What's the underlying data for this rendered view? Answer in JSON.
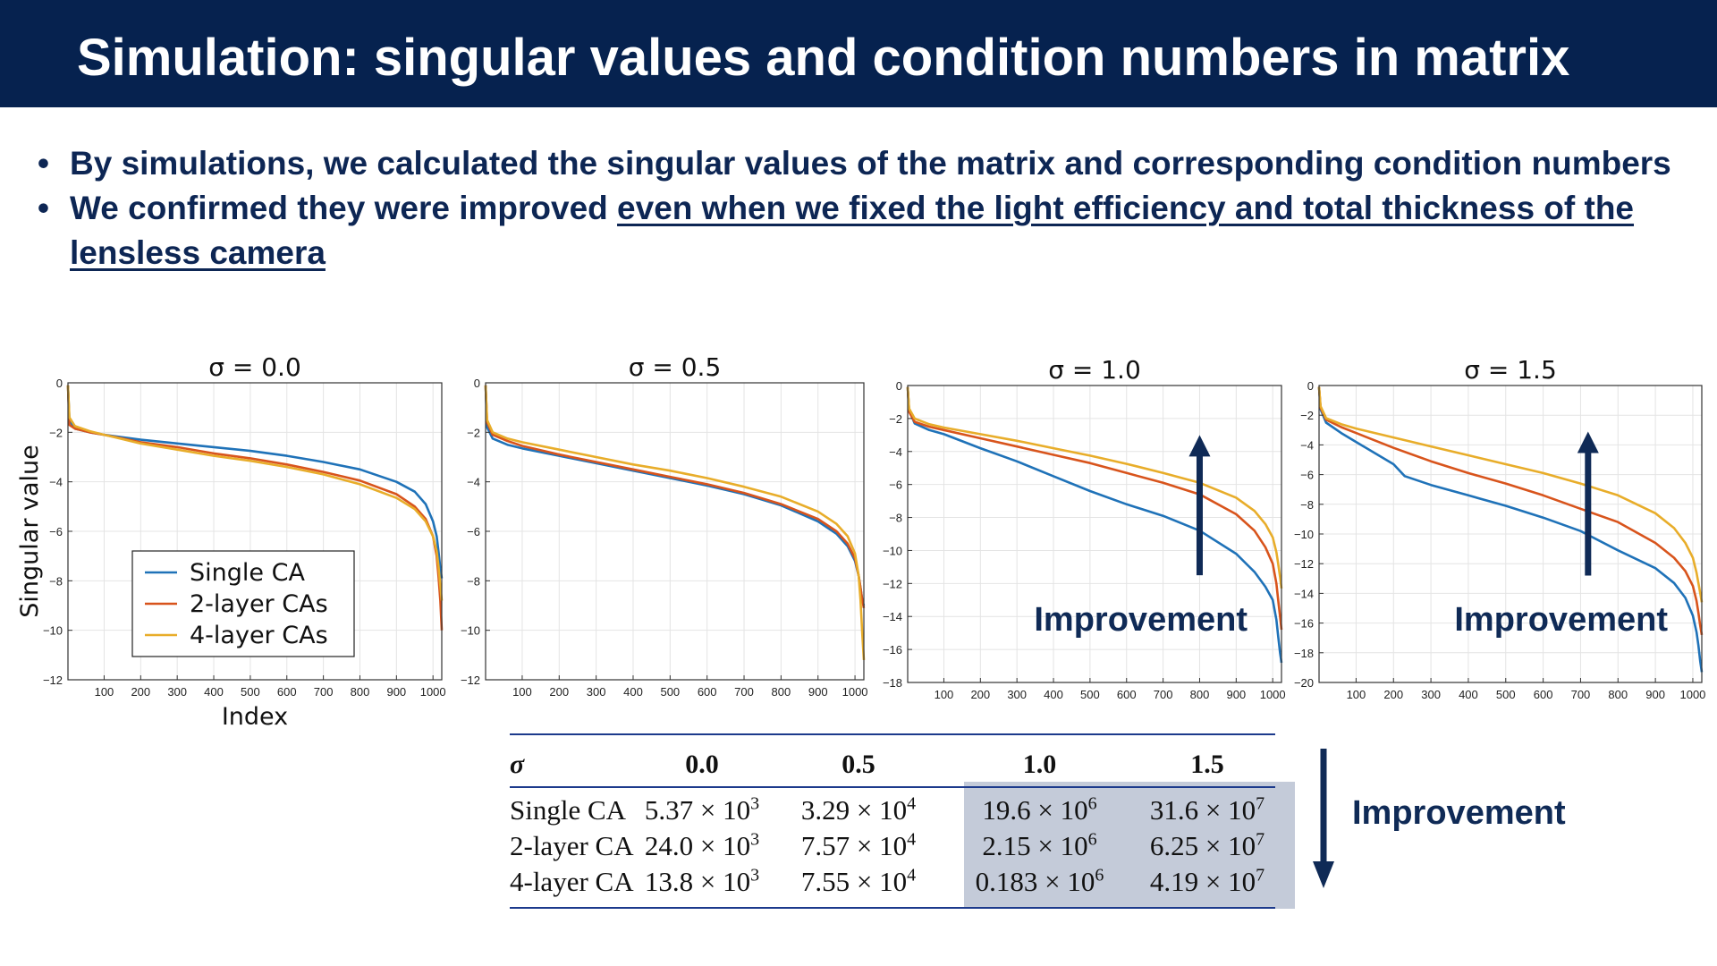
{
  "title": "Simulation: singular values and condition numbers in matrix",
  "bullets": [
    {
      "text": "By simulations, we calculated the singular values of the matrix and corresponding condition numbers",
      "underline": ""
    },
    {
      "text": "We confirmed they were improved ",
      "underline": "even when we fixed the light efficiency and total thickness of the lensless camera"
    }
  ],
  "bullet_symbol": "•",
  "colors": {
    "header_bg": "#06224f",
    "text": "#0d2654",
    "single": "#1f72b8",
    "two_layer": "#d8541c",
    "four_layer": "#e8ad2a",
    "arrow": "#0f2a56",
    "highlight": "#c4cbd9"
  },
  "chart_data": [
    {
      "type": "line",
      "title": "σ = 0.0",
      "xlabel": "Index",
      "ylabel": "Singular value",
      "xlim": [
        1,
        1024
      ],
      "ylim": [
        -12,
        0
      ],
      "xticks": [
        100,
        200,
        300,
        400,
        500,
        600,
        700,
        800,
        900,
        1000
      ],
      "yticks": [
        0,
        -2,
        -4,
        -6,
        -8,
        -10,
        -12
      ],
      "grid": true,
      "legend": {
        "position": "lower-left",
        "entries": [
          "Single CA",
          "2-layer CAs",
          "4-layer CAs"
        ]
      },
      "annotation": "",
      "series": [
        {
          "name": "Single CA",
          "color": "#1f72b8",
          "x": [
            1,
            5,
            20,
            60,
            100,
            200,
            300,
            400,
            500,
            600,
            700,
            800,
            900,
            950,
            980,
            1000,
            1010,
            1015,
            1020,
            1024
          ],
          "y": [
            -0.1,
            -1.5,
            -1.85,
            -2.0,
            -2.1,
            -2.3,
            -2.45,
            -2.6,
            -2.75,
            -2.95,
            -3.2,
            -3.5,
            -4.0,
            -4.4,
            -4.9,
            -5.6,
            -6.2,
            -6.8,
            -7.5,
            -7.9
          ]
        },
        {
          "name": "2-layer CAs",
          "color": "#d8541c",
          "x": [
            1,
            5,
            20,
            60,
            100,
            200,
            300,
            400,
            500,
            600,
            700,
            800,
            900,
            950,
            980,
            1000,
            1010,
            1015,
            1020,
            1024
          ],
          "y": [
            -0.1,
            -1.7,
            -1.85,
            -2.0,
            -2.1,
            -2.4,
            -2.6,
            -2.85,
            -3.05,
            -3.3,
            -3.6,
            -3.95,
            -4.5,
            -5.0,
            -5.5,
            -6.2,
            -7.0,
            -7.8,
            -8.8,
            -10.0
          ]
        },
        {
          "name": "4-layer CAs",
          "color": "#e8ad2a",
          "x": [
            1,
            5,
            20,
            60,
            100,
            200,
            300,
            400,
            500,
            600,
            700,
            800,
            900,
            950,
            980,
            1000,
            1010,
            1015,
            1020,
            1024
          ],
          "y": [
            -0.1,
            -1.4,
            -1.75,
            -1.95,
            -2.1,
            -2.45,
            -2.7,
            -2.95,
            -3.15,
            -3.4,
            -3.7,
            -4.1,
            -4.65,
            -5.1,
            -5.6,
            -6.2,
            -6.8,
            -7.4,
            -8.2,
            -8.8
          ]
        }
      ]
    },
    {
      "type": "line",
      "title": "σ = 0.5",
      "xlabel": "",
      "ylabel": "",
      "xlim": [
        1,
        1024
      ],
      "ylim": [
        -12,
        0
      ],
      "xticks": [
        100,
        200,
        300,
        400,
        500,
        600,
        700,
        800,
        900,
        1000
      ],
      "yticks": [
        0,
        -2,
        -4,
        -6,
        -8,
        -10,
        -12
      ],
      "grid": true,
      "legend": null,
      "annotation": "",
      "series": [
        {
          "name": "Single CA",
          "color": "#1f72b8",
          "x": [
            1,
            5,
            20,
            60,
            100,
            200,
            300,
            400,
            500,
            600,
            700,
            800,
            900,
            950,
            980,
            1000,
            1010,
            1015,
            1020,
            1024
          ],
          "y": [
            -0.1,
            -1.8,
            -2.25,
            -2.5,
            -2.65,
            -2.95,
            -3.25,
            -3.55,
            -3.85,
            -4.15,
            -4.5,
            -4.95,
            -5.6,
            -6.1,
            -6.6,
            -7.2,
            -7.8,
            -8.3,
            -8.8,
            -9.0
          ]
        },
        {
          "name": "2-layer CAs",
          "color": "#d8541c",
          "x": [
            1,
            5,
            20,
            60,
            100,
            200,
            300,
            400,
            500,
            600,
            700,
            800,
            900,
            950,
            980,
            1000,
            1010,
            1015,
            1020,
            1024
          ],
          "y": [
            -0.1,
            -1.6,
            -2.1,
            -2.35,
            -2.55,
            -2.9,
            -3.2,
            -3.5,
            -3.8,
            -4.1,
            -4.45,
            -4.9,
            -5.5,
            -6.0,
            -6.5,
            -7.1,
            -7.8,
            -8.3,
            -8.8,
            -9.1
          ]
        },
        {
          "name": "4-layer CAs",
          "color": "#e8ad2a",
          "x": [
            1,
            5,
            20,
            60,
            100,
            200,
            300,
            400,
            500,
            600,
            700,
            800,
            900,
            950,
            980,
            1000,
            1010,
            1015,
            1020,
            1024
          ],
          "y": [
            -0.1,
            -1.5,
            -2.0,
            -2.25,
            -2.4,
            -2.7,
            -3.0,
            -3.3,
            -3.55,
            -3.85,
            -4.2,
            -4.6,
            -5.2,
            -5.7,
            -6.2,
            -6.9,
            -7.8,
            -8.8,
            -10.2,
            -11.2
          ]
        }
      ]
    },
    {
      "type": "line",
      "title": "σ = 1.0",
      "xlabel": "",
      "ylabel": "",
      "xlim": [
        1,
        1024
      ],
      "ylim": [
        -18,
        0
      ],
      "xticks": [
        100,
        200,
        300,
        400,
        500,
        600,
        700,
        800,
        900,
        1000
      ],
      "yticks": [
        0,
        -2,
        -4,
        -6,
        -8,
        -10,
        -12,
        -14,
        -16,
        -18
      ],
      "grid": true,
      "legend": null,
      "annotation": "Improvement",
      "arrow": {
        "from_x": 800,
        "from_y": -11.5,
        "to_x": 800,
        "to_y": -3.0
      },
      "series": [
        {
          "name": "Single CA",
          "color": "#1f72b8",
          "x": [
            1,
            5,
            20,
            60,
            100,
            200,
            300,
            400,
            500,
            600,
            700,
            800,
            900,
            950,
            980,
            1000,
            1010,
            1015,
            1020,
            1024
          ],
          "y": [
            -0.1,
            -1.5,
            -2.3,
            -2.7,
            -2.95,
            -3.8,
            -4.6,
            -5.5,
            -6.4,
            -7.2,
            -7.9,
            -8.8,
            -10.2,
            -11.3,
            -12.2,
            -13.0,
            -14.2,
            -15.2,
            -16.2,
            -16.8
          ]
        },
        {
          "name": "2-layer CAs",
          "color": "#d8541c",
          "x": [
            1,
            5,
            20,
            60,
            100,
            200,
            300,
            400,
            500,
            600,
            700,
            800,
            900,
            950,
            980,
            1000,
            1010,
            1015,
            1020,
            1024
          ],
          "y": [
            -0.1,
            -1.6,
            -2.2,
            -2.5,
            -2.7,
            -3.2,
            -3.7,
            -4.2,
            -4.7,
            -5.3,
            -5.9,
            -6.6,
            -7.8,
            -8.8,
            -9.8,
            -10.8,
            -12.0,
            -13.0,
            -14.0,
            -14.8
          ]
        },
        {
          "name": "4-layer CAs",
          "color": "#e8ad2a",
          "x": [
            1,
            5,
            20,
            60,
            100,
            200,
            300,
            400,
            500,
            600,
            700,
            800,
            900,
            950,
            980,
            1000,
            1010,
            1015,
            1020,
            1024
          ],
          "y": [
            -0.1,
            -1.4,
            -2.0,
            -2.35,
            -2.55,
            -2.95,
            -3.35,
            -3.8,
            -4.25,
            -4.75,
            -5.3,
            -5.9,
            -6.8,
            -7.6,
            -8.4,
            -9.2,
            -10.1,
            -10.8,
            -11.6,
            -12.3
          ]
        }
      ]
    },
    {
      "type": "line",
      "title": "σ = 1.5",
      "xlabel": "",
      "ylabel": "",
      "xlim": [
        1,
        1024
      ],
      "ylim": [
        -20,
        0
      ],
      "xticks": [
        100,
        200,
        300,
        400,
        500,
        600,
        700,
        800,
        900,
        1000
      ],
      "yticks": [
        0,
        -2,
        -4,
        -6,
        -8,
        -10,
        -12,
        -14,
        -16,
        -18,
        -20
      ],
      "grid": true,
      "legend": null,
      "annotation": "Improvement",
      "arrow": {
        "from_x": 720,
        "from_y": -12.8,
        "to_x": 720,
        "to_y": -3.1
      },
      "series": [
        {
          "name": "Single CA",
          "color": "#1f72b8",
          "x": [
            1,
            5,
            20,
            60,
            100,
            200,
            230,
            300,
            400,
            500,
            600,
            700,
            800,
            900,
            950,
            980,
            1000,
            1010,
            1015,
            1020,
            1024
          ],
          "y": [
            -0.1,
            -1.6,
            -2.5,
            -3.2,
            -3.8,
            -5.3,
            -6.1,
            -6.7,
            -7.4,
            -8.1,
            -8.9,
            -9.8,
            -11.1,
            -12.3,
            -13.3,
            -14.3,
            -15.5,
            -16.6,
            -17.5,
            -18.6,
            -19.3
          ]
        },
        {
          "name": "2-layer CAs",
          "color": "#d8541c",
          "x": [
            1,
            5,
            20,
            60,
            100,
            200,
            300,
            400,
            500,
            600,
            700,
            800,
            900,
            950,
            980,
            1000,
            1010,
            1015,
            1020,
            1024
          ],
          "y": [
            -0.1,
            -1.5,
            -2.3,
            -2.8,
            -3.2,
            -4.2,
            -5.1,
            -5.9,
            -6.6,
            -7.4,
            -8.3,
            -9.2,
            -10.6,
            -11.6,
            -12.5,
            -13.5,
            -14.5,
            -15.3,
            -16.2,
            -16.8
          ]
        },
        {
          "name": "4-layer CAs",
          "color": "#e8ad2a",
          "x": [
            1,
            5,
            20,
            60,
            100,
            200,
            300,
            400,
            500,
            600,
            700,
            800,
            900,
            950,
            980,
            1000,
            1010,
            1015,
            1020,
            1024
          ],
          "y": [
            -0.1,
            -1.4,
            -2.2,
            -2.6,
            -2.9,
            -3.5,
            -4.1,
            -4.7,
            -5.3,
            -5.9,
            -6.6,
            -7.4,
            -8.6,
            -9.6,
            -10.6,
            -11.6,
            -12.6,
            -13.3,
            -14.0,
            -14.6
          ]
        }
      ]
    },
    {
      "type": "table",
      "columns": [
        "σ",
        "0.0",
        "0.5",
        "1.0",
        "1.5"
      ],
      "rows": [
        {
          "label": "Single CA",
          "cells": [
            {
              "m": "5.37 × 10",
              "e": "3"
            },
            {
              "m": "3.29 × 10",
              "e": "4"
            },
            {
              "m": "19.6 × 10",
              "e": "6"
            },
            {
              "m": "31.6 × 10",
              "e": "7"
            }
          ]
        },
        {
          "label": "2-layer CA",
          "cells": [
            {
              "m": "24.0 × 10",
              "e": "3"
            },
            {
              "m": "7.57 × 10",
              "e": "4"
            },
            {
              "m": "2.15 × 10",
              "e": "6"
            },
            {
              "m": "6.25 × 10",
              "e": "7"
            }
          ]
        },
        {
          "label": "4-layer CA",
          "cells": [
            {
              "m": "13.8 × 10",
              "e": "3"
            },
            {
              "m": "7.55 × 10",
              "e": "4"
            },
            {
              "m": "0.183 × 10",
              "e": "6"
            },
            {
              "m": "4.19 × 10",
              "e": "7"
            }
          ]
        }
      ],
      "highlighted_columns": [
        "1.0",
        "1.5"
      ],
      "annotation": "Improvement"
    }
  ]
}
